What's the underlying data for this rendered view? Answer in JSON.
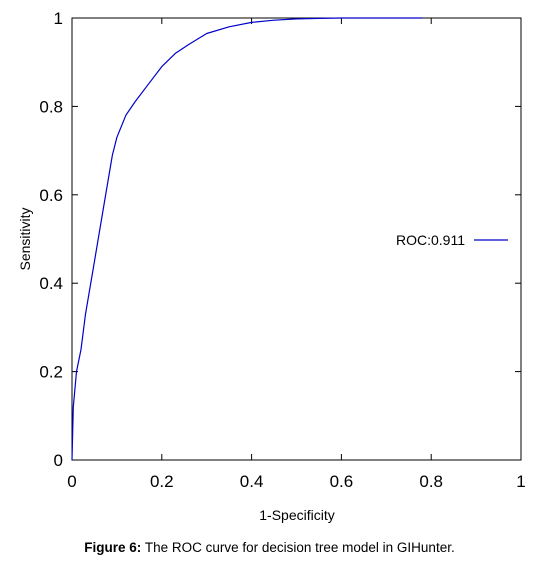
{
  "chart_data": {
    "type": "line",
    "xlabel": "1-Specificity",
    "ylabel": "Sensitivity",
    "xlim": [
      0,
      1
    ],
    "ylim": [
      0,
      1
    ],
    "xticks": [
      "0",
      "0.2",
      "0.4",
      "0.6",
      "0.8",
      "1"
    ],
    "yticks": [
      "0",
      "0.2",
      "0.4",
      "0.6",
      "0.8",
      "1"
    ],
    "grid": false,
    "legend_position": "right",
    "series": [
      {
        "name": "ROC:0.911",
        "color": "#0000cc",
        "x": [
          0,
          0.003,
          0.01,
          0.02,
          0.03,
          0.05,
          0.07,
          0.08,
          0.09,
          0.1,
          0.12,
          0.14,
          0.17,
          0.2,
          0.23,
          0.26,
          0.3,
          0.35,
          0.4,
          0.45,
          0.5,
          0.55,
          0.6,
          0.7,
          0.78
        ],
        "y": [
          0,
          0.12,
          0.2,
          0.25,
          0.33,
          0.45,
          0.57,
          0.63,
          0.69,
          0.73,
          0.78,
          0.81,
          0.85,
          0.89,
          0.92,
          0.94,
          0.965,
          0.98,
          0.99,
          0.995,
          0.998,
          0.999,
          1.0,
          1.0,
          1.0
        ]
      }
    ]
  },
  "caption": {
    "label": "Figure 6:",
    "text": " The ROC curve for decision tree model in GIHunter."
  }
}
